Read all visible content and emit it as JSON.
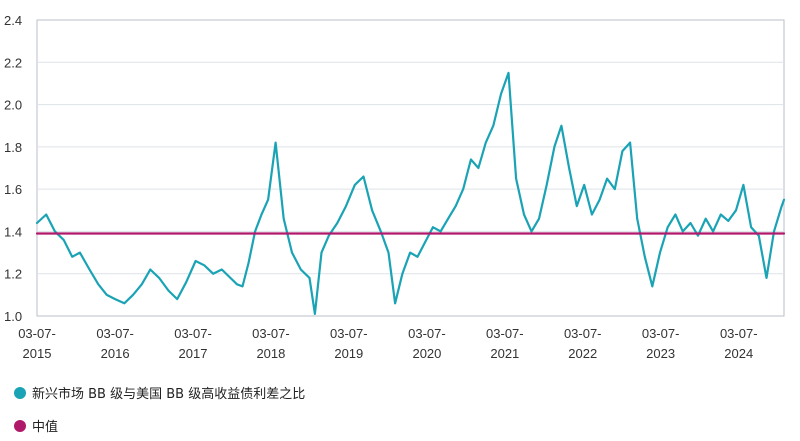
{
  "chart_data": {
    "type": "line",
    "ylim": [
      1.0,
      2.4
    ],
    "yticks": [
      "1.0",
      "1.2",
      "1.4",
      "1.6",
      "1.8",
      "2.0",
      "2.2",
      "2.4"
    ],
    "xlim": [
      "2015-07-03",
      "2025-01-31"
    ],
    "xticks": [
      {
        "line1": "03-07-",
        "line2": "2015",
        "date": "2015-07-03"
      },
      {
        "line1": "03-07-",
        "line2": "2016",
        "date": "2016-07-03"
      },
      {
        "line1": "03-07-",
        "line2": "2017",
        "date": "2017-07-03"
      },
      {
        "line1": "03-07-",
        "line2": "2018",
        "date": "2018-07-03"
      },
      {
        "line1": "03-07-",
        "line2": "2019",
        "date": "2019-07-03"
      },
      {
        "line1": "03-07-",
        "line2": "2020",
        "date": "2020-07-03"
      },
      {
        "line1": "03-07-",
        "line2": "2021",
        "date": "2021-07-03"
      },
      {
        "line1": "03-07-",
        "line2": "2022",
        "date": "2022-07-03"
      },
      {
        "line1": "03-07-",
        "line2": "2023",
        "date": "2023-07-03"
      },
      {
        "line1": "03-07-",
        "line2": "2024",
        "date": "2024-07-03"
      }
    ],
    "grid": true,
    "legend_position": "bottom-left",
    "series": [
      {
        "name": "新兴市场 BB 级与美国 BB 级高收益债利差之比",
        "color": "#1aa3b5",
        "x": [
          "2015-07-03",
          "2015-08-15",
          "2015-09-25",
          "2015-11-05",
          "2015-12-15",
          "2016-01-20",
          "2016-03-05",
          "2016-04-15",
          "2016-05-25",
          "2016-07-03",
          "2016-08-15",
          "2016-09-25",
          "2016-11-05",
          "2016-12-15",
          "2017-01-25",
          "2017-03-10",
          "2017-04-20",
          "2017-06-01",
          "2017-07-15",
          "2017-08-25",
          "2017-10-05",
          "2017-11-15",
          "2017-12-25",
          "2018-01-25",
          "2018-02-20",
          "2018-03-20",
          "2018-04-20",
          "2018-05-20",
          "2018-06-20",
          "2018-07-25",
          "2018-09-01",
          "2018-10-10",
          "2018-11-20",
          "2018-12-31",
          "2019-01-25",
          "2019-02-25",
          "2019-03-31",
          "2019-05-10",
          "2019-06-20",
          "2019-07-31",
          "2019-09-10",
          "2019-10-20",
          "2019-11-30",
          "2020-01-05",
          "2020-02-05",
          "2020-03-10",
          "2020-04-15",
          "2020-05-20",
          "2020-06-25",
          "2020-07-31",
          "2020-09-05",
          "2020-10-10",
          "2020-11-15",
          "2020-12-20",
          "2021-01-25",
          "2021-03-01",
          "2021-04-05",
          "2021-05-10",
          "2021-06-15",
          "2021-07-20",
          "2021-08-25",
          "2021-10-01",
          "2021-11-05",
          "2021-12-10",
          "2022-01-15",
          "2022-02-20",
          "2022-03-25",
          "2022-04-30",
          "2022-06-05",
          "2022-07-10",
          "2022-08-15",
          "2022-09-20",
          "2022-10-25",
          "2022-11-30",
          "2023-01-05",
          "2023-02-10",
          "2023-03-15",
          "2023-04-20",
          "2023-05-25",
          "2023-06-30",
          "2023-08-05",
          "2023-09-10",
          "2023-10-15",
          "2023-11-20",
          "2023-12-25",
          "2024-01-30",
          "2024-03-05",
          "2024-04-10",
          "2024-05-15",
          "2024-06-20",
          "2024-07-25",
          "2024-08-30",
          "2024-10-05",
          "2024-11-10",
          "2024-12-15",
          "2025-01-20",
          "2025-01-31"
        ],
        "values": [
          1.44,
          1.48,
          1.4,
          1.36,
          1.28,
          1.3,
          1.22,
          1.15,
          1.1,
          1.08,
          1.06,
          1.1,
          1.15,
          1.22,
          1.18,
          1.12,
          1.08,
          1.16,
          1.26,
          1.24,
          1.2,
          1.22,
          1.18,
          1.15,
          1.14,
          1.25,
          1.4,
          1.48,
          1.55,
          1.82,
          1.46,
          1.3,
          1.22,
          1.18,
          1.01,
          1.3,
          1.38,
          1.44,
          1.52,
          1.62,
          1.66,
          1.5,
          1.4,
          1.3,
          1.06,
          1.2,
          1.3,
          1.28,
          1.35,
          1.42,
          1.4,
          1.46,
          1.52,
          1.6,
          1.74,
          1.7,
          1.82,
          1.9,
          2.05,
          2.15,
          1.65,
          1.48,
          1.4,
          1.46,
          1.62,
          1.8,
          1.9,
          1.7,
          1.52,
          1.62,
          1.48,
          1.55,
          1.65,
          1.6,
          1.78,
          1.82,
          1.46,
          1.28,
          1.14,
          1.3,
          1.42,
          1.48,
          1.4,
          1.44,
          1.38,
          1.46,
          1.4,
          1.48,
          1.45,
          1.5,
          1.62,
          1.42,
          1.38,
          1.18,
          1.4,
          1.52,
          1.55
        ]
      },
      {
        "name": "中值",
        "color": "#b0186a",
        "x": [
          "2015-07-03",
          "2025-01-31"
        ],
        "values": [
          1.39,
          1.39
        ]
      }
    ]
  }
}
